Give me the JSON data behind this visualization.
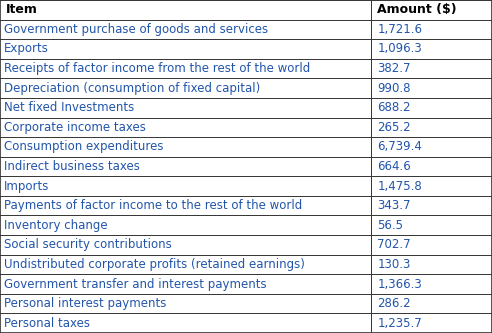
{
  "headers": [
    "Item",
    "Amount ($)"
  ],
  "rows": [
    [
      "Government purchase of goods and services",
      "1,721.6"
    ],
    [
      "Exports",
      "1,096.3"
    ],
    [
      "Receipts of factor income from the rest of the world",
      "382.7"
    ],
    [
      "Depreciation (consumption of fixed capital)",
      "990.8"
    ],
    [
      "Net fixed Investments",
      "688.2"
    ],
    [
      "Corporate income taxes",
      "265.2"
    ],
    [
      "Consumption expenditures",
      "6,739.4"
    ],
    [
      "Indirect business taxes",
      "664.6"
    ],
    [
      "Imports",
      "1,475.8"
    ],
    [
      "Payments of factor income to the rest of the world",
      "343.7"
    ],
    [
      "Inventory change",
      "56.5"
    ],
    [
      "Social security contributions",
      "702.7"
    ],
    [
      "Undistributed corporate profits (retained earnings)",
      "130.3"
    ],
    [
      "Government transfer and interest payments",
      "1,366.3"
    ],
    [
      "Personal interest payments",
      "286.2"
    ],
    [
      "Personal taxes",
      "1,235.7"
    ]
  ],
  "header_bg": "#ffffff",
  "header_text_color": "#000000",
  "row_bg": "#ffffff",
  "text_color": "#2255aa",
  "border_color": "#333333",
  "font_size": 8.5,
  "header_font_size": 9.0,
  "col_split": 0.755,
  "fig_width": 4.92,
  "fig_height": 3.33,
  "dpi": 100
}
